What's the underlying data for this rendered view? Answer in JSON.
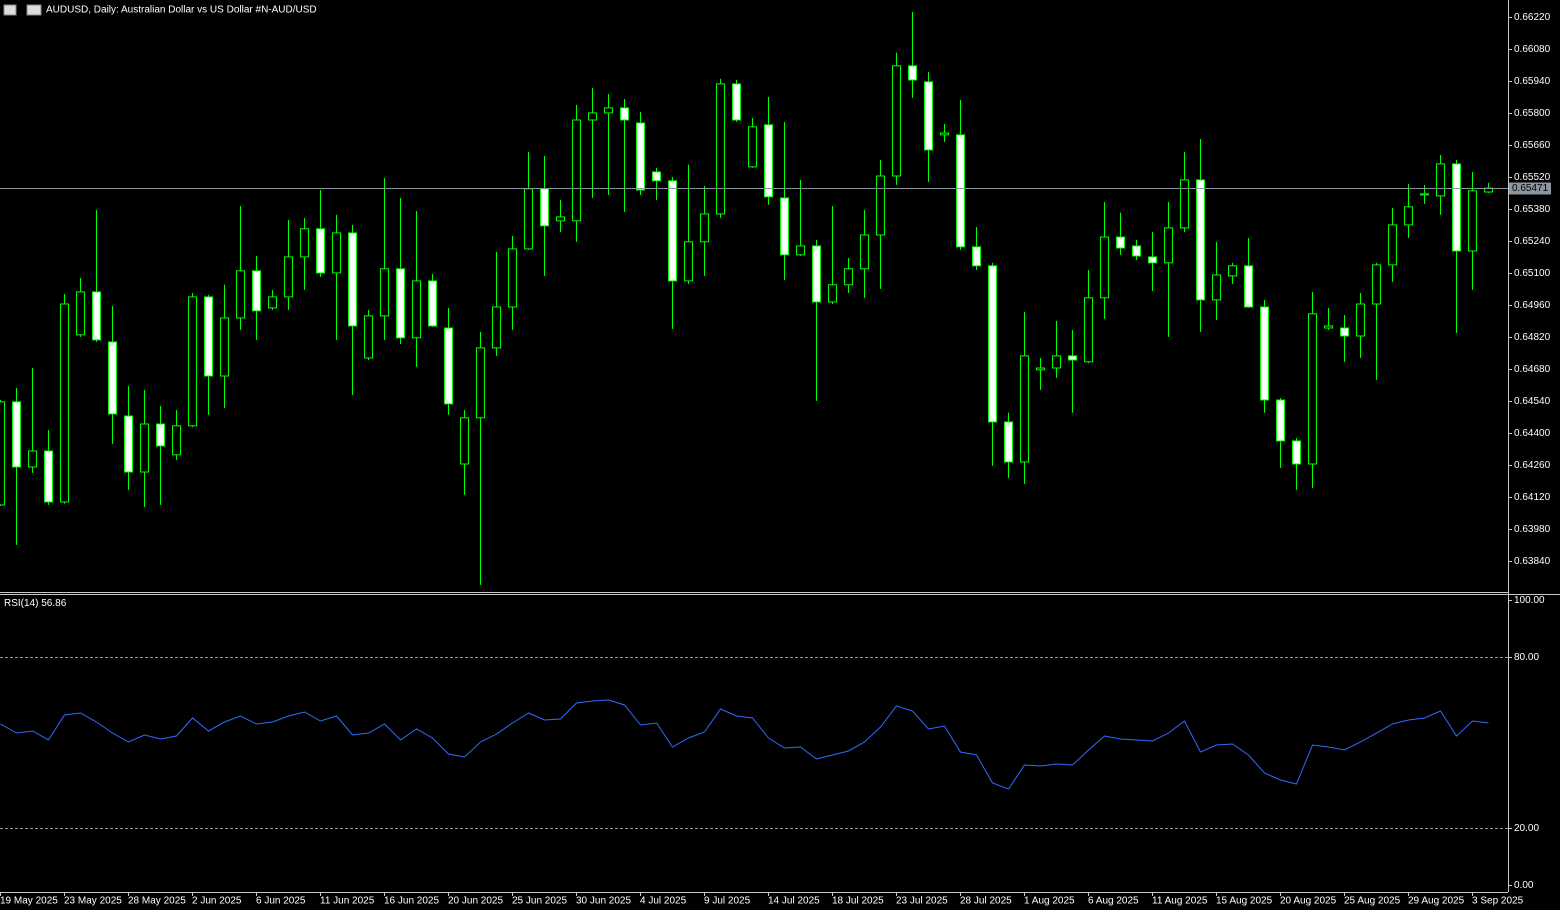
{
  "chart_data": [
    {
      "type": "candlestick",
      "title": "AUDUSD, Daily:  Australian Dollar vs US Dollar #N-AUD/USD",
      "categories": [
        "19 May 2025",
        null,
        null,
        null,
        "23 May 2025",
        null,
        null,
        null,
        "28 May 2025",
        null,
        null,
        null,
        "2 Jun 2025",
        null,
        null,
        null,
        "6 Jun 2025",
        null,
        null,
        null,
        "11 Jun 2025",
        null,
        null,
        null,
        "16 Jun 2025",
        null,
        null,
        null,
        "20 Jun 2025",
        null,
        null,
        null,
        "25 Jun 2025",
        null,
        null,
        null,
        "30 Jun 2025",
        null,
        null,
        null,
        "4 Jul 2025",
        null,
        null,
        null,
        "9 Jul 2025",
        null,
        null,
        null,
        "14 Jul 2025",
        null,
        null,
        null,
        "18 Jul 2025",
        null,
        null,
        null,
        "23 Jul 2025",
        null,
        null,
        null,
        "28 Jul 2025",
        null,
        null,
        null,
        "1 Aug 2025",
        null,
        null,
        null,
        "6 Aug 2025",
        null,
        null,
        null,
        "11 Aug 2025",
        null,
        null,
        null,
        "15 Aug 2025",
        null,
        null,
        null,
        "20 Aug 2025",
        null,
        null,
        null,
        "25 Aug 2025",
        null,
        null,
        null,
        "29 Aug 2025",
        null,
        null,
        null,
        "3 Sep 2025",
        null
      ],
      "open": [
        0.64085,
        0.64536,
        0.64251,
        0.64321,
        0.64098,
        0.64829,
        0.65017,
        0.64798,
        0.64474,
        0.64229,
        0.64439,
        0.64304,
        0.64431,
        0.64995,
        0.64649,
        0.64903,
        0.65109,
        0.64947,
        0.64995,
        0.6517,
        0.65293,
        0.651,
        0.65275,
        0.64728,
        0.64912,
        0.65118,
        0.64816,
        0.65065,
        0.64859,
        0.64264,
        0.64466,
        0.64772,
        0.64951,
        0.65205,
        0.65468,
        0.65328,
        0.65328,
        0.65769,
        0.658,
        0.65822,
        0.65756,
        0.65542,
        0.65503,
        0.65065,
        0.65236,
        0.65358,
        0.65927,
        0.65564,
        0.65748,
        0.65428,
        0.65179,
        0.65218,
        0.64973,
        0.65048,
        0.65118,
        0.65266,
        0.65524,
        0.66006,
        0.65936,
        0.65704,
        0.65704,
        0.65214,
        0.65131,
        0.64448,
        0.64273,
        0.64676,
        0.64684,
        0.64737,
        0.64711,
        0.64991,
        0.65257,
        0.65218,
        0.6517,
        0.65144,
        0.65297,
        0.65507,
        0.64982,
        0.65087,
        0.65131,
        0.64951,
        0.64544,
        0.64365,
        0.64264,
        0.64859,
        0.64859,
        0.64824,
        0.64964,
        0.65135,
        0.6531,
        0.65441,
        0.65437,
        0.65577,
        0.65196,
        0.65454
      ],
      "high": [
        0.64544,
        0.64597,
        0.64684,
        0.64413,
        0.65008,
        0.65078,
        0.65376,
        0.64956,
        0.64606,
        0.64588,
        0.64518,
        0.64501,
        0.65012,
        0.65004,
        0.65048,
        0.65393,
        0.65174,
        0.65026,
        0.65332,
        0.65341,
        0.65463,
        0.65354,
        0.6531,
        0.64938,
        0.65516,
        0.65428,
        0.65371,
        0.65096,
        0.64947,
        0.64501,
        0.64842,
        0.65192,
        0.65262,
        0.65629,
        0.65612,
        0.65419,
        0.65835,
        0.65909,
        0.65883,
        0.65861,
        0.65804,
        0.65559,
        0.6552,
        0.65573,
        0.65481,
        0.65949,
        0.65944,
        0.65778,
        0.6587,
        0.65761,
        0.65507,
        0.65244,
        0.65393,
        0.65166,
        0.65376,
        0.65594,
        0.66063,
        0.66242,
        0.65979,
        0.65752,
        0.65857,
        0.65301,
        0.65144,
        0.64488,
        0.64929,
        0.64728,
        0.6489,
        0.64851,
        0.65113,
        0.65411,
        0.65363,
        0.65244,
        0.65279,
        0.65411,
        0.65629,
        0.65686,
        0.65236,
        0.65144,
        0.65253,
        0.64982,
        0.64553,
        0.64378,
        0.65017,
        0.64947,
        0.64916,
        0.65012,
        0.65144,
        0.65384,
        0.65489,
        0.65485,
        0.65616,
        0.65594,
        0.65542,
        0.65494
      ],
      "low": [
        0.6408,
        0.6391,
        0.64225,
        0.64085,
        0.6409,
        0.6482,
        0.64798,
        0.64352,
        0.64151,
        0.64076,
        0.64085,
        0.64282,
        0.64425,
        0.64479,
        0.64509,
        0.64851,
        0.64807,
        0.64938,
        0.64938,
        0.65026,
        0.65083,
        0.64807,
        0.64566,
        0.64719,
        0.64807,
        0.64789,
        0.64689,
        0.64864,
        0.64479,
        0.64129,
        0.63735,
        0.64737,
        0.64851,
        0.65201,
        0.65087,
        0.65279,
        0.65236,
        0.65428,
        0.65441,
        0.65367,
        0.65441,
        0.65419,
        0.64855,
        0.65052,
        0.65087,
        0.65341,
        0.65761,
        0.6556,
        0.65398,
        0.65069,
        0.65174,
        0.6454,
        0.64964,
        0.65012,
        0.64991,
        0.6503,
        0.65485,
        0.65866,
        0.65498,
        0.65673,
        0.65201,
        0.65113,
        0.64256,
        0.64203,
        0.64177,
        0.64588,
        0.64641,
        0.64488,
        0.64705,
        0.64899,
        0.65179,
        0.65157,
        0.65021,
        0.6482,
        0.65279,
        0.64842,
        0.64894,
        0.65052,
        0.64947,
        0.64488,
        0.64247,
        0.64151,
        0.64159,
        0.64851,
        0.64711,
        0.64728,
        0.64632,
        0.65061,
        0.65253,
        0.65402,
        0.65354,
        0.64837,
        0.65026,
        0.6545
      ],
      "close": [
        0.64536,
        0.64251,
        0.64321,
        0.64098,
        0.64964,
        0.65017,
        0.64807,
        0.64483,
        0.64229,
        0.64439,
        0.64343,
        0.64431,
        0.64995,
        0.64649,
        0.64903,
        0.65109,
        0.64934,
        0.64995,
        0.6517,
        0.65293,
        0.651,
        0.65275,
        0.64868,
        0.64912,
        0.65118,
        0.64816,
        0.65065,
        0.64868,
        0.64527,
        0.64466,
        0.64772,
        0.64951,
        0.65205,
        0.65468,
        0.65306,
        0.65345,
        0.65769,
        0.658,
        0.65822,
        0.65769,
        0.65463,
        0.65503,
        0.65065,
        0.65236,
        0.65358,
        0.65927,
        0.65769,
        0.65739,
        0.65433,
        0.65179,
        0.65218,
        0.64973,
        0.65048,
        0.65118,
        0.65266,
        0.65524,
        0.66006,
        0.65944,
        0.65638,
        0.65712,
        0.65214,
        0.65131,
        0.64448,
        0.64273,
        0.64737,
        0.64684,
        0.64737,
        0.64719,
        0.64991,
        0.65257,
        0.65209,
        0.65174,
        0.65144,
        0.65297,
        0.65507,
        0.64982,
        0.65091,
        0.65131,
        0.64951,
        0.64544,
        0.64365,
        0.64264,
        0.64921,
        0.64868,
        0.64824,
        0.64964,
        0.65135,
        0.6531,
        0.65389,
        0.65446,
        0.65577,
        0.65196,
        0.65459,
        0.65471
      ],
      "color": "#00ff00",
      "up_fill": "#000000",
      "down_fill": "#ffffff",
      "price_line_color": "#8c96a0",
      "ylim": [
        0.63704,
        0.66294
      ],
      "yticks": [
        {
          "value": 0.6622,
          "label": "0.66220"
        },
        {
          "value": 0.6608,
          "label": "0.66080"
        },
        {
          "value": 0.6594,
          "label": "0.65940"
        },
        {
          "value": 0.658,
          "label": "0.65800"
        },
        {
          "value": 0.6566,
          "label": "0.65660"
        },
        {
          "value": 0.6552,
          "label": "0.65520"
        },
        {
          "value": 0.6538,
          "label": "0.65380"
        },
        {
          "value": 0.6524,
          "label": "0.65240"
        },
        {
          "value": 0.651,
          "label": "0.65100"
        },
        {
          "value": 0.6496,
          "label": "0.64960"
        },
        {
          "value": 0.6482,
          "label": "0.64820"
        },
        {
          "value": 0.6468,
          "label": "0.64680"
        },
        {
          "value": 0.6454,
          "label": "0.64540"
        },
        {
          "value": 0.644,
          "label": "0.64400"
        },
        {
          "value": 0.6426,
          "label": "0.64260"
        },
        {
          "value": 0.6412,
          "label": "0.64120"
        },
        {
          "value": 0.6398,
          "label": "0.63980"
        },
        {
          "value": 0.6384,
          "label": "0.63840"
        }
      ]
    },
    {
      "type": "line",
      "title": "RSI(14)",
      "color": "#2f6cff",
      "values": [
        56.49,
        53.33,
        54.04,
        50.88,
        59.65,
        60.35,
        57.19,
        53.33,
        50.18,
        52.63,
        51.23,
        52.28,
        58.6,
        54.04,
        57.19,
        59.3,
        56.49,
        57.19,
        59.3,
        60.7,
        57.54,
        59.3,
        52.63,
        53.33,
        56.49,
        50.88,
        54.74,
        51.58,
        45.96,
        44.91,
        50.18,
        52.98,
        56.84,
        60.35,
        57.89,
        58.25,
        63.86,
        64.56,
        64.91,
        63.16,
        56.14,
        56.84,
        48.42,
        51.58,
        53.68,
        61.75,
        59.3,
        58.6,
        51.58,
        48.07,
        48.42,
        44.21,
        45.61,
        47.02,
        50.18,
        55.44,
        62.81,
        61.05,
        54.74,
        55.79,
        46.67,
        45.61,
        35.79,
        33.68,
        42.11,
        41.75,
        42.46,
        42.11,
        47.37,
        52.28,
        51.23,
        50.88,
        50.53,
        53.33,
        57.54,
        46.67,
        49.12,
        49.47,
        45.61,
        39.3,
        36.84,
        35.44,
        49.12,
        48.42,
        47.37,
        50.18,
        53.33,
        56.49,
        57.89,
        58.6,
        61.05,
        52.28,
        57.54,
        56.86
      ],
      "ylim": [
        0,
        100
      ],
      "yticks": [
        {
          "value": 100,
          "label": "100.00"
        },
        {
          "value": 80,
          "label": "80.00"
        },
        {
          "value": 20,
          "label": "20.00"
        },
        {
          "value": 0,
          "label": "0.00"
        }
      ]
    }
  ]
}
